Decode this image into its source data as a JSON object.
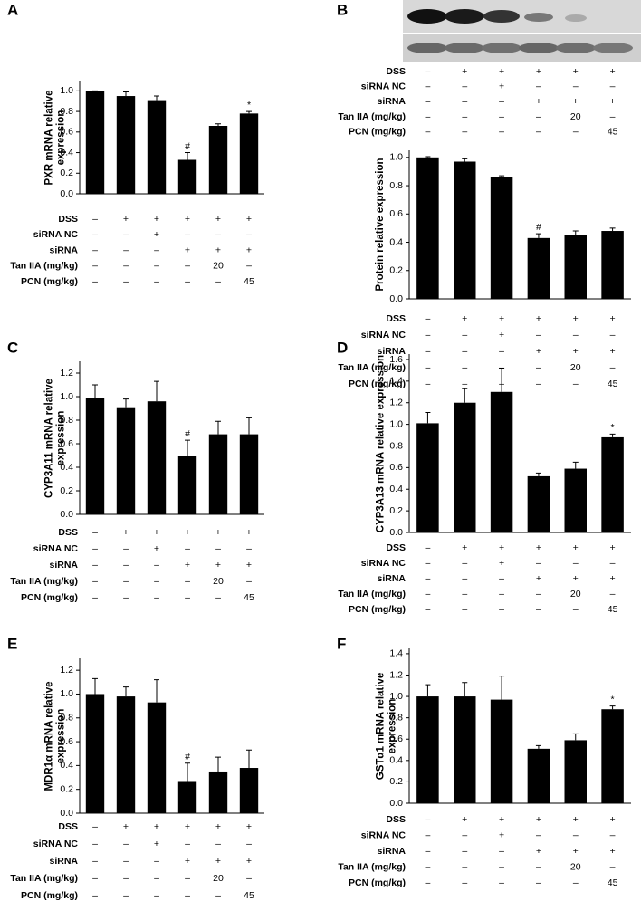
{
  "chart_data": [
    {
      "type": "bar",
      "label": "A",
      "ylabel": "PXR mRNA relative expression",
      "color": "#000000",
      "values": [
        1.0,
        0.95,
        0.91,
        0.33,
        0.66,
        0.78
      ],
      "errors": [
        0,
        0.04,
        0.04,
        0.07,
        0.02,
        0.02
      ],
      "annotations": [
        null,
        null,
        null,
        "#",
        null,
        "*"
      ],
      "ylim": [
        0,
        1.1
      ],
      "yticks": [
        {
          "value": 0,
          "label": "0.0"
        },
        0.2,
        0.4,
        0.6,
        0.8,
        {
          "value": 1,
          "label": "1.0"
        }
      ],
      "conditions": [
        {
          "label": "DSS",
          "cells": [
            "–",
            "+",
            "+",
            "+",
            "+",
            "+"
          ]
        },
        {
          "label": "siRNA NC",
          "cells": [
            "–",
            "–",
            "+",
            "–",
            "–",
            "–"
          ]
        },
        {
          "label": "siRNA",
          "cells": [
            "–",
            "–",
            "–",
            "+",
            "+",
            "+"
          ]
        },
        {
          "label": "Tan IIA (mg/kg)",
          "cells": [
            "–",
            "–",
            "–",
            "–",
            "20",
            "–"
          ]
        },
        {
          "label": "PCN (mg/kg)",
          "cells": [
            "–",
            "–",
            "–",
            "–",
            "–",
            "45"
          ]
        }
      ]
    },
    {
      "type": "bar",
      "label": "B",
      "ylabel": "Protein relative expression",
      "color": "#000000",
      "values": [
        1.0,
        0.97,
        0.86,
        0.43,
        0.45,
        0.48
      ],
      "errors": [
        0.005,
        0.02,
        0.01,
        0.03,
        0.03,
        0.02
      ],
      "annotations": [
        null,
        null,
        null,
        "#",
        null,
        null
      ],
      "ylim": [
        0,
        1.05
      ],
      "yticks": [
        {
          "value": 0,
          "label": "0.0"
        },
        0.2,
        0.4,
        0.6,
        0.8,
        {
          "value": 1,
          "label": "1.0"
        }
      ],
      "blot_conditions": [
        {
          "label": "DSS",
          "cells": [
            "–",
            "+",
            "+",
            "+",
            "+",
            "+"
          ]
        },
        {
          "label": "siRNA NC",
          "cells": [
            "–",
            "–",
            "+",
            "–",
            "–",
            "–"
          ]
        },
        {
          "label": "siRNA",
          "cells": [
            "–",
            "–",
            "–",
            "+",
            "+",
            "+"
          ]
        },
        {
          "label": "Tan IIA (mg/kg)",
          "cells": [
            "–",
            "–",
            "–",
            "–",
            "20",
            "–"
          ]
        },
        {
          "label": "PCN (mg/kg)",
          "cells": [
            "–",
            "–",
            "–",
            "–",
            "–",
            "45"
          ]
        }
      ],
      "conditions": [
        {
          "label": "DSS",
          "cells": [
            "–",
            "+",
            "+",
            "+",
            "+",
            "+"
          ]
        },
        {
          "label": "siRNA NC",
          "cells": [
            "–",
            "–",
            "+",
            "–",
            "–",
            "–"
          ]
        },
        {
          "label": "siRNA",
          "cells": [
            "–",
            "–",
            "–",
            "+",
            "+",
            "+"
          ]
        },
        {
          "label": "Tan IIA (mg/kg)",
          "cells": [
            "–",
            "–",
            "–",
            "–",
            "20",
            "–"
          ]
        },
        {
          "label": "PCN (mg/kg)",
          "cells": [
            "–",
            "–",
            "–",
            "–",
            "–",
            "45"
          ]
        }
      ]
    },
    {
      "type": "bar",
      "label": "C",
      "ylabel": "CYP3A11 mRNA relative expression",
      "color": "#000000",
      "values": [
        0.99,
        0.91,
        0.96,
        0.5,
        0.68,
        0.68
      ],
      "errors": [
        0.11,
        0.07,
        0.17,
        0.13,
        0.11,
        0.14
      ],
      "annotations": [
        null,
        null,
        null,
        "#",
        null,
        null
      ],
      "ylim": [
        0,
        1.3
      ],
      "yticks": [
        {
          "value": 0,
          "label": "0.0"
        },
        0.2,
        0.4,
        0.6,
        0.8,
        {
          "value": 1,
          "label": "1.0"
        },
        1.2
      ],
      "conditions": [
        {
          "label": "DSS",
          "cells": [
            "–",
            "+",
            "+",
            "+",
            "+",
            "+"
          ]
        },
        {
          "label": "siRNA NC",
          "cells": [
            "–",
            "–",
            "+",
            "–",
            "–",
            "–"
          ]
        },
        {
          "label": "siRNA",
          "cells": [
            "–",
            "–",
            "–",
            "+",
            "+",
            "+"
          ]
        },
        {
          "label": "Tan IIA (mg/kg)",
          "cells": [
            "–",
            "–",
            "–",
            "–",
            "20",
            "–"
          ]
        },
        {
          "label": "PCN (mg/kg)",
          "cells": [
            "–",
            "–",
            "–",
            "–",
            "–",
            "45"
          ]
        }
      ]
    },
    {
      "type": "bar",
      "label": "D",
      "ylabel": "CYP3A13 mRNA relative expression",
      "color": "#000000",
      "values": [
        1.01,
        1.2,
        1.3,
        0.52,
        0.59,
        0.88
      ],
      "errors": [
        0.1,
        0.13,
        0.22,
        0.03,
        0.06,
        0.03
      ],
      "annotations": [
        null,
        null,
        null,
        null,
        null,
        "*"
      ],
      "ylim": [
        0,
        1.65
      ],
      "yticks": [
        {
          "value": 0,
          "label": "0.0"
        },
        0.2,
        0.4,
        0.6,
        0.8,
        {
          "value": 1,
          "label": "1.0"
        },
        1.2,
        1.4,
        1.6
      ],
      "conditions": [
        {
          "label": "DSS",
          "cells": [
            "–",
            "+",
            "+",
            "+",
            "+",
            "+"
          ]
        },
        {
          "label": "siRNA NC",
          "cells": [
            "–",
            "–",
            "+",
            "–",
            "–",
            "–"
          ]
        },
        {
          "label": "siRNA",
          "cells": [
            "–",
            "–",
            "–",
            "+",
            "+",
            "+"
          ]
        },
        {
          "label": "Tan IIA (mg/kg)",
          "cells": [
            "–",
            "–",
            "–",
            "–",
            "20",
            "–"
          ]
        },
        {
          "label": "PCN (mg/kg)",
          "cells": [
            "–",
            "–",
            "–",
            "–",
            "–",
            "45"
          ]
        }
      ]
    },
    {
      "type": "bar",
      "label": "E",
      "ylabel": "MDR1α mRNA relative expression",
      "color": "#000000",
      "values": [
        1.0,
        0.98,
        0.93,
        0.27,
        0.35,
        0.38
      ],
      "errors": [
        0.13,
        0.08,
        0.19,
        0.15,
        0.12,
        0.15
      ],
      "annotations": [
        null,
        null,
        null,
        "#",
        null,
        null
      ],
      "ylim": [
        0,
        1.3
      ],
      "yticks": [
        {
          "value": 0,
          "label": "0.0"
        },
        0.2,
        0.4,
        0.6,
        0.8,
        {
          "value": 1,
          "label": "1.0"
        },
        1.2
      ],
      "conditions": [
        {
          "label": "DSS",
          "cells": [
            "–",
            "+",
            "+",
            "+",
            "+",
            "+"
          ]
        },
        {
          "label": "siRNA NC",
          "cells": [
            "–",
            "–",
            "+",
            "–",
            "–",
            "–"
          ]
        },
        {
          "label": "siRNA",
          "cells": [
            "–",
            "–",
            "–",
            "+",
            "+",
            "+"
          ]
        },
        {
          "label": "Tan IIA (mg/kg)",
          "cells": [
            "–",
            "–",
            "–",
            "–",
            "20",
            "–"
          ]
        },
        {
          "label": "PCN (mg/kg)",
          "cells": [
            "–",
            "–",
            "–",
            "–",
            "–",
            "45"
          ]
        }
      ]
    },
    {
      "type": "bar",
      "label": "F",
      "ylabel": "GSTα1 mRNA relative expression",
      "color": "#000000",
      "values": [
        1.0,
        1.0,
        0.97,
        0.51,
        0.59,
        0.88
      ],
      "errors": [
        0.11,
        0.13,
        0.22,
        0.03,
        0.06,
        0.03
      ],
      "annotations": [
        null,
        null,
        null,
        null,
        null,
        "*"
      ],
      "ylim": [
        0,
        1.45
      ],
      "yticks": [
        {
          "value": 0,
          "label": "0.0"
        },
        0.2,
        0.4,
        0.6,
        0.8,
        {
          "value": 1,
          "label": "1.0"
        },
        1.2,
        1.4
      ],
      "conditions": [
        {
          "label": "DSS",
          "cells": [
            "–",
            "+",
            "+",
            "+",
            "+",
            "+"
          ]
        },
        {
          "label": "siRNA NC",
          "cells": [
            "–",
            "–",
            "+",
            "–",
            "–",
            "–"
          ]
        },
        {
          "label": "siRNA",
          "cells": [
            "–",
            "–",
            "–",
            "+",
            "+",
            "+"
          ]
        },
        {
          "label": "Tan IIA (mg/kg)",
          "cells": [
            "–",
            "–",
            "–",
            "–",
            "20",
            "–"
          ]
        },
        {
          "label": "PCN (mg/kg)",
          "cells": [
            "–",
            "–",
            "–",
            "–",
            "–",
            "45"
          ]
        }
      ]
    }
  ]
}
